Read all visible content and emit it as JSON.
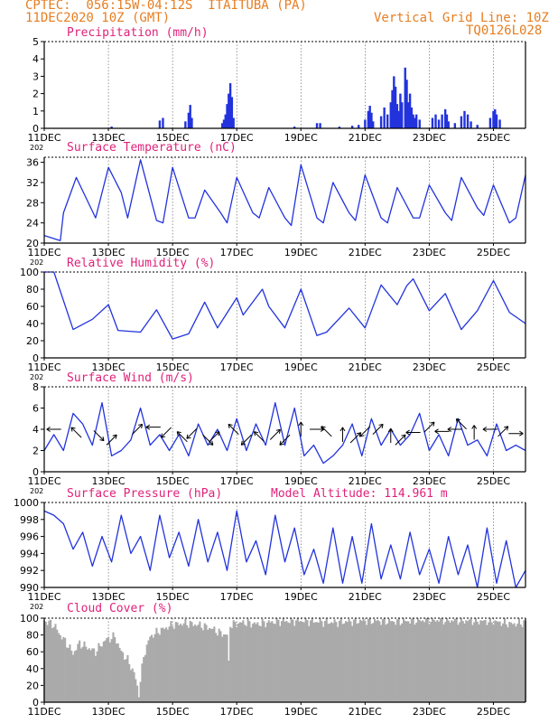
{
  "header": {
    "line1": "CPTEC:  056:15W-04:12S  ITAITUBA (PA)",
    "line2": "11DEC2020 10Z (GMT)",
    "grid_note": "Vertical Grid Line: 10Z",
    "run_id": "TQ0126L028"
  },
  "altitude_note": "Model Altitude: 114.961 m",
  "x_ticks": [
    "11DEC",
    "13DEC",
    "15DEC",
    "17DEC",
    "19DEC",
    "21DEC",
    "23DEC",
    "25DEC"
  ],
  "year_fragment": "202",
  "colors": {
    "line": "#2233dd",
    "bars": "#2233dd",
    "cloud": "#aaaaaa",
    "title": "#e0227a",
    "header": "#e67e22"
  },
  "chart_data": [
    {
      "type": "bar",
      "title": "Precipitation (mm/h)",
      "ylim": [
        0,
        5
      ],
      "yticks": [
        0,
        1,
        2,
        3,
        4,
        5
      ],
      "x_range": [
        0,
        15
      ],
      "bars": [
        [
          2.1,
          0.1
        ],
        [
          3.6,
          0.45
        ],
        [
          3.7,
          0.6
        ],
        [
          4.4,
          0.4
        ],
        [
          4.5,
          0.9
        ],
        [
          4.55,
          1.35
        ],
        [
          4.6,
          0.6
        ],
        [
          5.55,
          0.3
        ],
        [
          5.6,
          0.5
        ],
        [
          5.65,
          0.8
        ],
        [
          5.7,
          1.4
        ],
        [
          5.75,
          2.0
        ],
        [
          5.8,
          2.6
        ],
        [
          5.85,
          1.8
        ],
        [
          5.9,
          0.6
        ],
        [
          7.8,
          0.1
        ],
        [
          8.5,
          0.3
        ],
        [
          8.6,
          0.3
        ],
        [
          9.2,
          0.1
        ],
        [
          9.6,
          0.15
        ],
        [
          9.8,
          0.2
        ],
        [
          10.0,
          0.5
        ],
        [
          10.1,
          1.0
        ],
        [
          10.15,
          1.3
        ],
        [
          10.2,
          0.9
        ],
        [
          10.25,
          0.4
        ],
        [
          10.5,
          0.7
        ],
        [
          10.6,
          1.2
        ],
        [
          10.7,
          0.8
        ],
        [
          10.8,
          1.5
        ],
        [
          10.85,
          2.2
        ],
        [
          10.9,
          3.0
        ],
        [
          10.95,
          2.4
        ],
        [
          11.0,
          1.4
        ],
        [
          11.05,
          1.0
        ],
        [
          11.1,
          2.0
        ],
        [
          11.15,
          1.5
        ],
        [
          11.25,
          3.5
        ],
        [
          11.3,
          2.8
        ],
        [
          11.35,
          1.5
        ],
        [
          11.4,
          2.0
        ],
        [
          11.45,
          1.2
        ],
        [
          11.5,
          0.8
        ],
        [
          11.55,
          0.6
        ],
        [
          11.6,
          0.8
        ],
        [
          11.7,
          0.5
        ],
        [
          12.1,
          0.6
        ],
        [
          12.2,
          0.8
        ],
        [
          12.3,
          0.5
        ],
        [
          12.4,
          0.8
        ],
        [
          12.5,
          1.1
        ],
        [
          12.55,
          0.8
        ],
        [
          12.6,
          0.4
        ],
        [
          12.8,
          0.3
        ],
        [
          13.0,
          0.7
        ],
        [
          13.1,
          1.0
        ],
        [
          13.2,
          0.8
        ],
        [
          13.3,
          0.4
        ],
        [
          13.5,
          0.2
        ],
        [
          13.9,
          0.6
        ],
        [
          14.0,
          1.0
        ],
        [
          14.05,
          1.1
        ],
        [
          14.1,
          0.8
        ],
        [
          14.2,
          0.5
        ]
      ]
    },
    {
      "type": "line",
      "title": "Surface Temperature (nC)",
      "ylim": [
        20,
        37
      ],
      "yticks": [
        20,
        24,
        28,
        32,
        36
      ],
      "x_range": [
        0,
        15
      ],
      "x": [
        0,
        0.5,
        0.6,
        1.0,
        1.6,
        2.0,
        2.4,
        2.6,
        3.0,
        3.5,
        3.7,
        4.0,
        4.5,
        4.7,
        5.0,
        5.5,
        5.7,
        6.0,
        6.5,
        6.7,
        7.0,
        7.5,
        7.7,
        8.0,
        8.5,
        8.7,
        9.0,
        9.5,
        9.7,
        10.0,
        10.5,
        10.7,
        11.0,
        11.5,
        11.7,
        12.0,
        12.5,
        12.7,
        13.0,
        13.5,
        13.7,
        14.0,
        14.5,
        14.7,
        15.0
      ],
      "y": [
        21.5,
        20.5,
        26.0,
        33.0,
        25.0,
        35.0,
        30.0,
        25.0,
        36.5,
        24.5,
        24.0,
        35.0,
        25.0,
        25.0,
        30.5,
        26.0,
        24.0,
        33.0,
        26.0,
        25.0,
        31.0,
        25.0,
        23.5,
        35.5,
        25.0,
        24.0,
        32.0,
        26.0,
        24.5,
        33.5,
        25.0,
        24.0,
        31.0,
        25.0,
        25.0,
        31.5,
        26.0,
        24.5,
        33.0,
        27.0,
        25.5,
        31.5,
        24.0,
        25.0,
        33.5
      ]
    },
    {
      "type": "line",
      "title": "Relative Humidity (%)",
      "ylim": [
        0,
        100
      ],
      "yticks": [
        0,
        20,
        40,
        60,
        80,
        100
      ],
      "x_range": [
        0,
        15
      ],
      "x": [
        0,
        0.3,
        0.9,
        1.5,
        2.0,
        2.3,
        3.0,
        3.5,
        4.0,
        4.5,
        5.0,
        5.4,
        6.0,
        6.2,
        6.8,
        7.0,
        7.5,
        8.0,
        8.5,
        8.8,
        9.5,
        10.0,
        10.5,
        11.0,
        11.3,
        11.5,
        12.0,
        12.5,
        13.0,
        13.5,
        14.0,
        14.5,
        15.0
      ],
      "y": [
        100,
        100,
        33,
        45,
        62,
        32,
        30,
        56,
        22,
        28,
        65,
        35,
        70,
        50,
        80,
        60,
        35,
        80,
        26,
        30,
        58,
        35,
        85,
        62,
        84,
        92,
        55,
        75,
        33,
        55,
        90,
        53,
        40
      ]
    },
    {
      "type": "line",
      "title": "Surface Wind (m/s)",
      "ylim": [
        0,
        8
      ],
      "yticks": [
        0,
        2,
        4,
        6,
        8
      ],
      "x_range": [
        0,
        15
      ],
      "x": [
        0,
        0.3,
        0.6,
        0.9,
        1.2,
        1.5,
        1.8,
        2.1,
        2.4,
        2.7,
        3.0,
        3.3,
        3.6,
        3.9,
        4.2,
        4.5,
        4.8,
        5.1,
        5.4,
        5.7,
        6.0,
        6.3,
        6.6,
        6.9,
        7.2,
        7.5,
        7.8,
        8.1,
        8.4,
        8.7,
        9.0,
        9.3,
        9.6,
        9.9,
        10.2,
        10.5,
        10.8,
        11.1,
        11.4,
        11.7,
        12.0,
        12.3,
        12.6,
        12.9,
        13.2,
        13.5,
        13.8,
        14.1,
        14.4,
        14.7,
        15.0
      ],
      "y": [
        2.0,
        3.5,
        2.0,
        5.5,
        4.5,
        2.5,
        6.5,
        1.5,
        2.0,
        3.0,
        6.0,
        2.5,
        3.5,
        2.0,
        3.5,
        1.5,
        4.5,
        2.5,
        4.0,
        2.0,
        5.0,
        2.0,
        4.5,
        2.5,
        6.5,
        2.5,
        6.0,
        1.5,
        2.5,
        0.8,
        1.5,
        2.5,
        4.5,
        1.5,
        5.0,
        2.5,
        4.0,
        2.5,
        3.5,
        5.5,
        2.0,
        3.5,
        1.5,
        5.0,
        2.5,
        3.0,
        1.5,
        4.5,
        2.0,
        2.5,
        2.0
      ],
      "arrows": [
        [
          0.3,
          4.0,
          "W"
        ],
        [
          1.0,
          3.7,
          "NW"
        ],
        [
          1.7,
          3.4,
          "SE"
        ],
        [
          2.1,
          3.0,
          "NE"
        ],
        [
          2.9,
          4.0,
          "NE"
        ],
        [
          3.4,
          4.2,
          "W"
        ],
        [
          3.8,
          3.7,
          "SW"
        ],
        [
          4.3,
          3.3,
          "NW"
        ],
        [
          4.6,
          3.6,
          "SW"
        ],
        [
          5.1,
          3.0,
          "SE"
        ],
        [
          5.3,
          3.3,
          "NE"
        ],
        [
          5.9,
          4.0,
          "NW"
        ],
        [
          6.3,
          3.0,
          "SW"
        ],
        [
          6.7,
          3.3,
          "NW"
        ],
        [
          7.2,
          3.5,
          "NE"
        ],
        [
          7.5,
          3.0,
          "SW"
        ],
        [
          8.0,
          4.0,
          "N"
        ],
        [
          8.5,
          4.0,
          "E"
        ],
        [
          8.8,
          3.8,
          "NW"
        ],
        [
          9.3,
          3.5,
          "N"
        ],
        [
          9.7,
          3.2,
          "NE"
        ],
        [
          10.0,
          3.8,
          "SW"
        ],
        [
          10.4,
          4.0,
          "NE"
        ],
        [
          10.8,
          3.4,
          "N"
        ],
        [
          11.1,
          3.0,
          "NE"
        ],
        [
          11.5,
          3.7,
          "W"
        ],
        [
          12.0,
          4.2,
          "NE"
        ],
        [
          12.4,
          3.8,
          "W"
        ],
        [
          12.8,
          4.0,
          "W"
        ],
        [
          13.0,
          4.5,
          "NW"
        ],
        [
          13.4,
          3.7,
          "N"
        ],
        [
          13.9,
          4.0,
          "W"
        ],
        [
          14.3,
          3.8,
          "NE"
        ],
        [
          14.7,
          3.6,
          "E"
        ]
      ]
    },
    {
      "type": "line",
      "title": "Surface Pressure (hPa)",
      "ylim": [
        990,
        1000
      ],
      "yticks": [
        990,
        992,
        994,
        996,
        998,
        1000
      ],
      "x_range": [
        0,
        15
      ],
      "x": [
        0,
        0.3,
        0.6,
        0.9,
        1.2,
        1.5,
        1.8,
        2.1,
        2.4,
        2.7,
        3.0,
        3.3,
        3.6,
        3.9,
        4.2,
        4.5,
        4.8,
        5.1,
        5.4,
        5.7,
        6.0,
        6.3,
        6.6,
        6.9,
        7.2,
        7.5,
        7.8,
        8.1,
        8.4,
        8.7,
        9.0,
        9.3,
        9.6,
        9.9,
        10.2,
        10.5,
        10.8,
        11.1,
        11.4,
        11.7,
        12.0,
        12.3,
        12.6,
        12.9,
        13.2,
        13.5,
        13.8,
        14.1,
        14.4,
        14.7,
        15.0
      ],
      "y": [
        999.0,
        998.5,
        997.5,
        994.5,
        996.5,
        992.5,
        996.0,
        993.0,
        998.5,
        994.0,
        996.0,
        992.0,
        998.5,
        993.5,
        996.5,
        992.5,
        998.0,
        993.0,
        996.5,
        992.0,
        999.0,
        993.0,
        995.5,
        991.5,
        998.5,
        993.0,
        997.0,
        991.5,
        994.5,
        990.5,
        997.0,
        990.5,
        996.0,
        990.5,
        997.5,
        991.0,
        995.0,
        991.0,
        996.5,
        991.5,
        994.5,
        990.5,
        996.0,
        991.5,
        995.0,
        990.0,
        997.0,
        990.5,
        995.5,
        990.0,
        992.0
      ]
    },
    {
      "type": "bar",
      "title": "Cloud Cover (%)",
      "ylim": [
        0,
        100
      ],
      "yticks": [
        0,
        20,
        40,
        60,
        80,
        100
      ],
      "x_range": [
        0,
        15
      ],
      "profile": [
        [
          0,
          97
        ],
        [
          0.3,
          92
        ],
        [
          0.5,
          80
        ],
        [
          0.7,
          70
        ],
        [
          0.9,
          58
        ],
        [
          1.1,
          70
        ],
        [
          1.3,
          66
        ],
        [
          1.6,
          60
        ],
        [
          1.9,
          74
        ],
        [
          2.2,
          78
        ],
        [
          2.4,
          60
        ],
        [
          2.6,
          50
        ],
        [
          2.8,
          35
        ],
        [
          2.95,
          10
        ],
        [
          3.1,
          55
        ],
        [
          3.3,
          78
        ],
        [
          3.6,
          85
        ],
        [
          4.0,
          92
        ],
        [
          4.4,
          94
        ],
        [
          4.8,
          92
        ],
        [
          5.2,
          88
        ],
        [
          5.5,
          82
        ],
        [
          5.7,
          80
        ],
        [
          5.72,
          0
        ],
        [
          5.78,
          92
        ],
        [
          6.2,
          95
        ],
        [
          6.6,
          93
        ],
        [
          7.2,
          96
        ],
        [
          8.0,
          97
        ],
        [
          9.0,
          95
        ],
        [
          10.0,
          97
        ],
        [
          11.0,
          96
        ],
        [
          12.0,
          98
        ],
        [
          13.0,
          97
        ],
        [
          14.0,
          96
        ],
        [
          14.6,
          93
        ],
        [
          15.0,
          95
        ]
      ]
    }
  ]
}
